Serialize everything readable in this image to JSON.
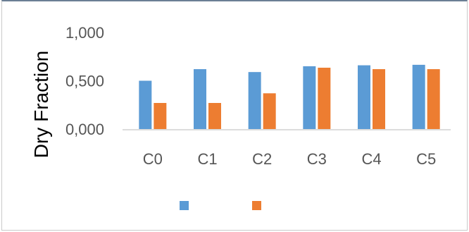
{
  "chart_data": {
    "type": "bar",
    "title": "",
    "xlabel": "",
    "ylabel": "Dry Fraction",
    "ylim": [
      0,
      1
    ],
    "yticks": [
      {
        "value": 0,
        "label": "0,000"
      },
      {
        "value": 0.5,
        "label": "0,500"
      },
      {
        "value": 1,
        "label": "1,000"
      }
    ],
    "categories": [
      "C0",
      "C1",
      "C2",
      "C3",
      "C4",
      "C5"
    ],
    "series": [
      {
        "values": [
          0.5,
          0.62,
          0.59,
          0.65,
          0.66,
          0.665
        ],
        "color": "#5b9bd5"
      },
      {
        "values": [
          0.27,
          0.27,
          0.37,
          0.635,
          0.62,
          0.62
        ],
        "color": "#ed7d31"
      }
    ],
    "grid": false,
    "legend": "bottom"
  }
}
